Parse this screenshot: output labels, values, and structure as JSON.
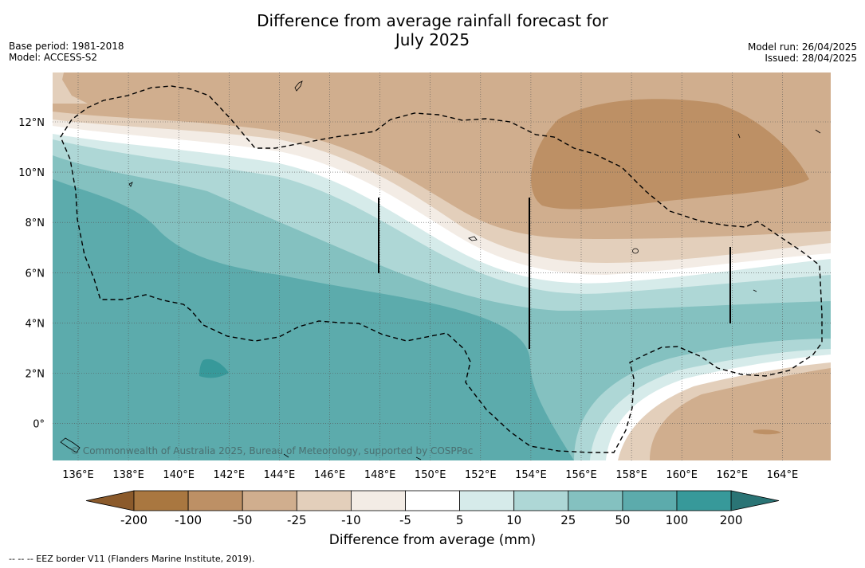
{
  "header": {
    "title_line1": "Difference from average rainfall forecast for",
    "title_line2": "July 2025",
    "base_period": "Base period: 1981-2018",
    "model": "Model: ACCESS-S2",
    "model_run": "Model run: 26/04/2025",
    "issued": "Issued: 28/04/2025"
  },
  "map": {
    "x_tick_labels": [
      "136°E",
      "138°E",
      "140°E",
      "142°E",
      "144°E",
      "146°E",
      "148°E",
      "150°E",
      "152°E",
      "154°E",
      "156°E",
      "158°E",
      "160°E",
      "162°E",
      "164°E"
    ],
    "y_tick_labels": [
      "12°N",
      "10°N",
      "8°N",
      "6°N",
      "4°N",
      "2°N",
      "0°"
    ],
    "copyright": "© Commonwealth of Australia 2025, Bureau of Meteorology, supported by COSPPac",
    "border_style": "dashed"
  },
  "colorbar": {
    "title": "Difference from average (mm)",
    "tick_labels": [
      "-200",
      "-100",
      "-50",
      "-25",
      "-10",
      "-5",
      "5",
      "10",
      "25",
      "50",
      "100",
      "200"
    ],
    "colors": [
      "#a97740",
      "#bd9065",
      "#d0ae8e",
      "#e3cfbb",
      "#f3ece5",
      "#ffffff",
      "#d6ebea",
      "#aed7d6",
      "#84c1c0",
      "#5cabac",
      "#37999a"
    ],
    "under_color": "#8b5a2b",
    "over_color": "#2a7475"
  },
  "footer": {
    "legend_text": "--  --  -- EEZ border V11 (Flanders Marine Institute, 2019)."
  }
}
